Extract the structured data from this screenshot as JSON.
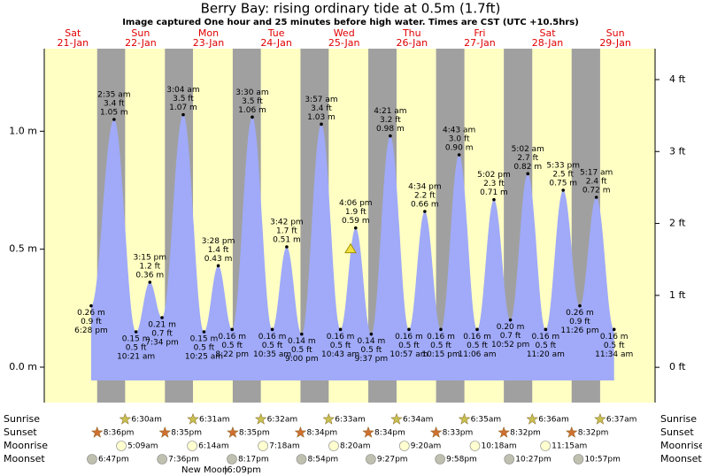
{
  "chart_data": {
    "type": "area",
    "title": "Berry Bay: rising  ordinary tide at 0.5m (1.7ft)",
    "subtitle": "Image captured One hour and 25 minutes before high water. Times are CST (UTC +10.5hrs)",
    "categories": [
      "Sat",
      "Sun",
      "Mon",
      "Tue",
      "Wed",
      "Thu",
      "Fri",
      "Sat",
      "Sun"
    ],
    "dates": [
      "21-Jan",
      "22-Jan",
      "23-Jan",
      "24-Jan",
      "25-Jan",
      "26-Jan",
      "27-Jan",
      "28-Jan",
      "29-Jan"
    ],
    "x": [
      "6:28 pm",
      "2:35 am",
      "10:21 am",
      "3:15 pm",
      "7:34 pm",
      "3:04 am",
      "10:25 am",
      "3:28 pm",
      "8:22 pm",
      "3:30 am",
      "10:35 am",
      "3:42 pm",
      "9:00 pm",
      "3:57 am",
      "10:43 am",
      "4:06 pm",
      "9:37 pm",
      "4:21 am",
      "10:57 am",
      "4:34 pm",
      "10:15 pm",
      "4:43 am",
      "11:06 am",
      "5:02 pm",
      "10:52 pm",
      "5:02 am",
      "11:20 am",
      "5:33 pm",
      "11:26 pm",
      "5:17 am",
      "11:34 am"
    ],
    "values": [
      0.26,
      1.05,
      0.15,
      0.36,
      0.21,
      1.07,
      0.15,
      0.43,
      0.16,
      1.06,
      0.16,
      0.51,
      0.14,
      1.03,
      0.16,
      0.59,
      0.14,
      0.98,
      0.16,
      0.66,
      0.16,
      0.9,
      0.16,
      0.71,
      0.2,
      0.82,
      0.16,
      0.75,
      0.26,
      0.72,
      0.16
    ],
    "value_labels": [
      "0.26 m",
      "1.05 m",
      "0.15 m",
      "0.36 m",
      "0.21 m",
      "1.07 m",
      "0.15 m",
      "0.43 m",
      "0.16 m",
      "1.06 m",
      "0.16 m",
      "0.51 m",
      "0.14 m",
      "1.03 m",
      "0.16 m",
      "0.59 m",
      "0.14 m",
      "0.98 m",
      "0.16 m",
      "0.66 m",
      "0.16 m",
      "0.90 m",
      "0.16 m",
      "0.71 m",
      "0.20 m",
      "0.82 m",
      "0.16 m",
      "0.75 m",
      "0.26 m",
      "0.72 m",
      "0.16 m"
    ],
    "ft_labels": [
      "0.9 ft",
      "3.4 ft",
      "0.5 ft",
      "1.2 ft",
      "0.7 ft",
      "3.5 ft",
      "0.5 ft",
      "1.4 ft",
      "0.5 ft",
      "3.5 ft",
      "0.5 ft",
      "1.7 ft",
      "0.5 ft",
      "3.4 ft",
      "0.5 ft",
      "1.9 ft",
      "0.5 ft",
      "3.2 ft",
      "0.5 ft",
      "2.2 ft",
      "0.5 ft",
      "3.0 ft",
      "0.5 ft",
      "2.3 ft",
      "0.7 ft",
      "2.7 ft",
      "0.5 ft",
      "2.5 ft",
      "0.9 ft",
      "2.4 ft",
      "0.5 ft"
    ],
    "color": "#a0aaf8",
    "current_level": 0.5,
    "ylim": [
      -0.15,
      1.35
    ],
    "yticks": [
      {
        "value": 0,
        "label": "0.0 m"
      },
      {
        "value": 0.5,
        "label": "0.5 m"
      },
      {
        "value": 1,
        "label": "1.0 m"
      }
    ],
    "y2lim": [
      -0.49,
      4.43
    ],
    "y2ticks": [
      {
        "value": 0,
        "label": "0 ft"
      },
      {
        "value": 1,
        "label": "1 ft"
      },
      {
        "value": 2,
        "label": "2 ft"
      },
      {
        "value": 3,
        "label": "3 ft"
      },
      {
        "value": 4,
        "label": "4 ft"
      }
    ],
    "rows": [
      {
        "name": "Sunrise",
        "times": [
          null,
          "6:30am",
          "6:31am",
          "6:32am",
          "6:33am",
          "6:34am",
          "6:35am",
          "6:36am",
          "6:37am"
        ]
      },
      {
        "name": "Sunset",
        "times": [
          "8:36pm",
          "8:35pm",
          "8:35pm",
          "8:34pm",
          "8:34pm",
          "8:33pm",
          "8:32pm",
          "8:32pm",
          null
        ]
      },
      {
        "name": "Moonrise",
        "times": [
          null,
          "5:09am",
          "6:14am",
          "7:18am",
          "8:20am",
          "9:20am",
          "10:18am",
          "11:15am",
          null
        ]
      },
      {
        "name": "Moonset",
        "times": [
          "6:47pm",
          "7:36pm",
          "8:17pm",
          "8:54pm",
          "9:27pm",
          "9:58pm",
          "10:27pm",
          "10:57pm",
          null
        ]
      }
    ],
    "moon_phase": {
      "name": "New Moon",
      "time": "|6:09pm"
    }
  }
}
